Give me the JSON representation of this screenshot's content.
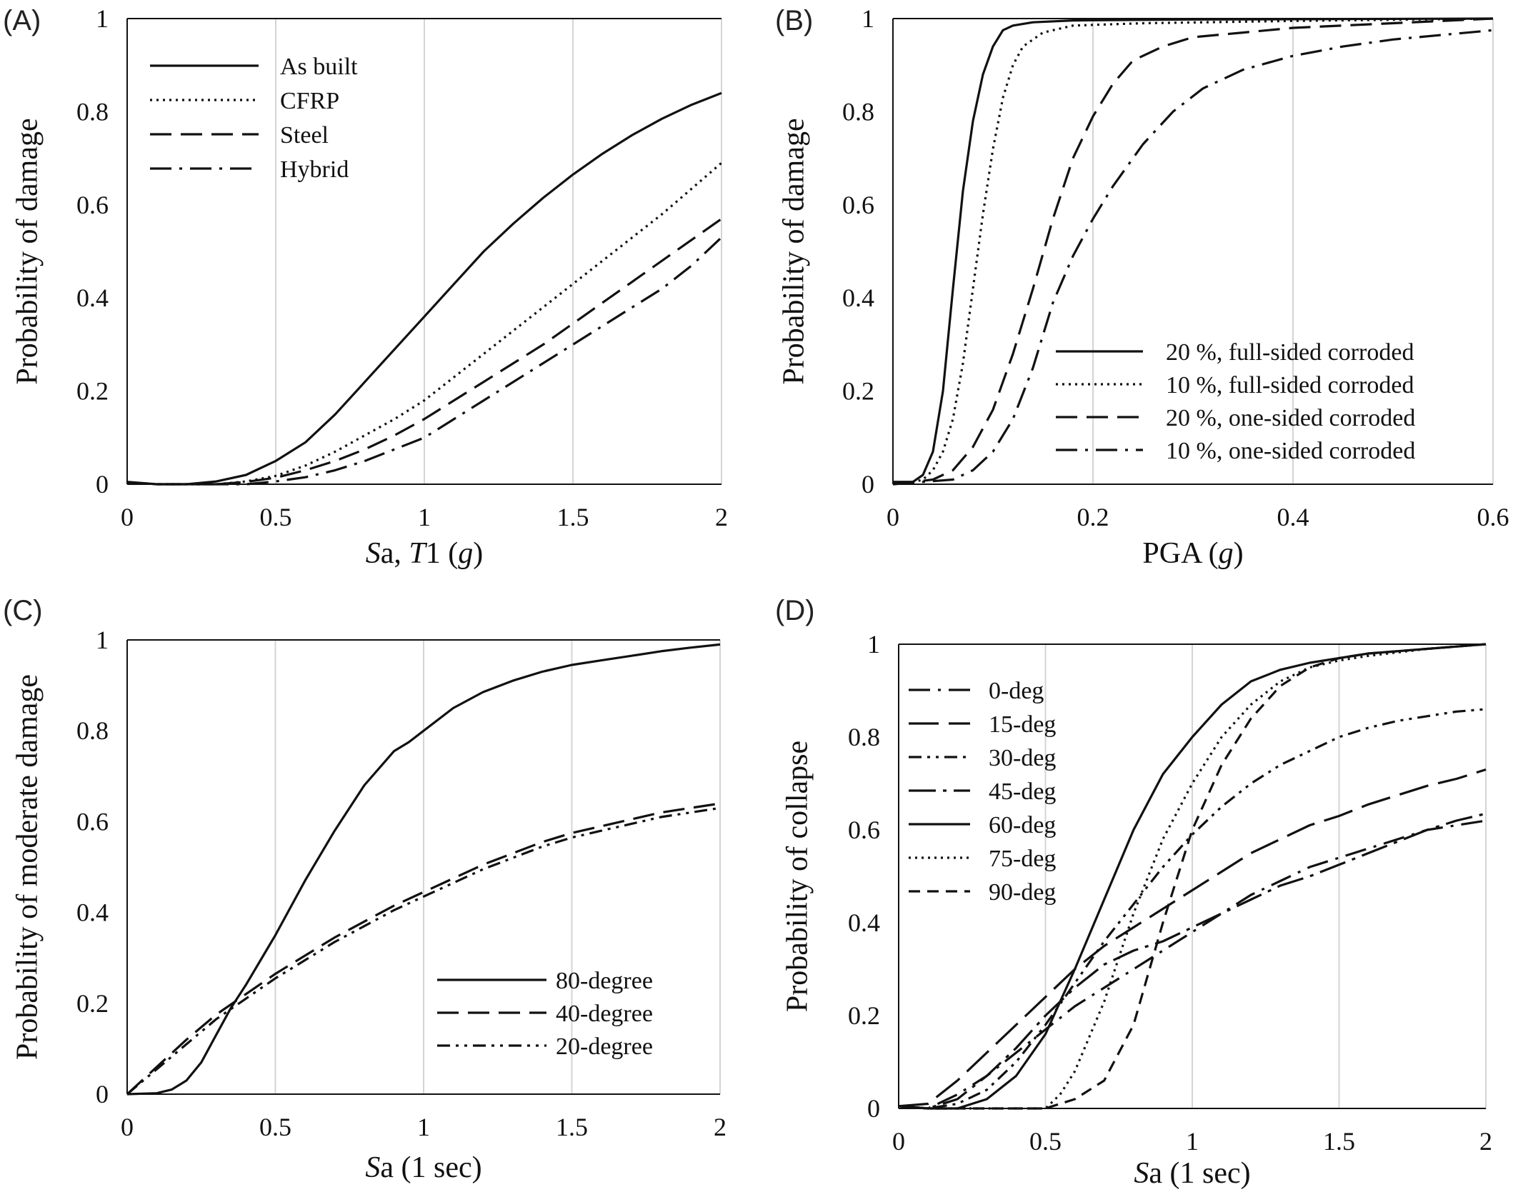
{
  "chart_data": [
    {
      "type": "line",
      "panel_label": "(A)",
      "xlabel_parts": [
        {
          "t": "S",
          "i": true
        },
        {
          "t": "a, ",
          "i": false
        },
        {
          "t": "T",
          "i": true
        },
        {
          "t": "1 (",
          "i": false
        },
        {
          "t": "g",
          "i": true
        },
        {
          "t": ")",
          "i": false
        }
      ],
      "ylabel": "Probability of damage",
      "xlim": [
        0,
        2
      ],
      "ylim": [
        0,
        1
      ],
      "xticks": [
        "0",
        "0.5",
        "1",
        "1.5",
        "2"
      ],
      "yticks": [
        "0",
        "0.2",
        "0.4",
        "0.6",
        "0.8",
        "1"
      ],
      "grid": true,
      "legend_position": "top-left",
      "series": [
        {
          "name": "As built",
          "dash": "solid",
          "x": [
            0,
            0.1,
            0.2,
            0.3,
            0.4,
            0.5,
            0.6,
            0.7,
            0.8,
            0.9,
            1.0,
            1.1,
            1.2,
            1.3,
            1.4,
            1.5,
            1.6,
            1.7,
            1.8,
            1.9,
            2.0
          ],
          "y": [
            0.005,
            0.0,
            0.0,
            0.006,
            0.02,
            0.05,
            0.09,
            0.15,
            0.22,
            0.29,
            0.36,
            0.43,
            0.5,
            0.56,
            0.615,
            0.665,
            0.71,
            0.75,
            0.785,
            0.815,
            0.84
          ]
        },
        {
          "name": "CFRP",
          "dash": "dotted",
          "x": [
            0,
            0.1,
            0.2,
            0.3,
            0.4,
            0.5,
            0.6,
            0.7,
            0.8,
            0.9,
            1.0,
            1.1,
            1.2,
            1.3,
            1.4,
            1.5,
            1.6,
            1.7,
            1.8,
            1.9,
            2.0
          ],
          "y": [
            0.004,
            0.0,
            0.0,
            0.0,
            0.006,
            0.018,
            0.04,
            0.07,
            0.105,
            0.14,
            0.18,
            0.23,
            0.28,
            0.33,
            0.38,
            0.43,
            0.48,
            0.53,
            0.58,
            0.635,
            0.69
          ]
        },
        {
          "name": "Steel",
          "dash": "dashed",
          "x": [
            0,
            0.1,
            0.2,
            0.3,
            0.4,
            0.5,
            0.6,
            0.7,
            0.8,
            0.9,
            1.0,
            1.1,
            1.2,
            1.3,
            1.4,
            1.5,
            1.6,
            1.7,
            1.8,
            1.9,
            2.0
          ],
          "y": [
            0.004,
            0.0,
            0.0,
            0.0,
            0.005,
            0.014,
            0.03,
            0.05,
            0.075,
            0.105,
            0.14,
            0.18,
            0.22,
            0.26,
            0.3,
            0.345,
            0.39,
            0.435,
            0.48,
            0.525,
            0.57
          ]
        },
        {
          "name": "Hybrid",
          "dash": "dashdot",
          "x": [
            0,
            0.1,
            0.2,
            0.3,
            0.4,
            0.5,
            0.6,
            0.7,
            0.8,
            0.9,
            1.0,
            1.1,
            1.2,
            1.3,
            1.4,
            1.5,
            1.6,
            1.7,
            1.8,
            1.9,
            2.0
          ],
          "y": [
            0.004,
            0.0,
            0.0,
            0.0,
            0.0,
            0.006,
            0.015,
            0.03,
            0.05,
            0.075,
            0.1,
            0.14,
            0.18,
            0.22,
            0.26,
            0.3,
            0.34,
            0.38,
            0.42,
            0.47,
            0.53
          ]
        }
      ]
    },
    {
      "type": "line",
      "panel_label": "(B)",
      "xlabel_parts": [
        {
          "t": "PGA (",
          "i": false
        },
        {
          "t": "g",
          "i": true
        },
        {
          "t": ")",
          "i": false
        }
      ],
      "ylabel": "Probability of damage",
      "xlim": [
        0,
        0.6
      ],
      "ylim": [
        0,
        1
      ],
      "xticks": [
        "0",
        "0.2",
        "0.4",
        "0.6"
      ],
      "yticks": [
        "0",
        "0.2",
        "0.4",
        "0.6",
        "0.8",
        "1"
      ],
      "grid": true,
      "legend_position": "bottom-right",
      "series": [
        {
          "name": "20 %, full-sided corroded",
          "dash": "solid",
          "x": [
            0,
            0.02,
            0.03,
            0.04,
            0.05,
            0.06,
            0.07,
            0.08,
            0.09,
            0.1,
            0.11,
            0.12,
            0.14,
            0.18,
            0.3,
            0.6
          ],
          "y": [
            0.005,
            0.005,
            0.02,
            0.07,
            0.2,
            0.42,
            0.63,
            0.78,
            0.88,
            0.94,
            0.975,
            0.985,
            0.992,
            0.996,
            0.998,
            1.0
          ]
        },
        {
          "name": "10 %, full-sided corroded",
          "dash": "dotted",
          "x": [
            0,
            0.02,
            0.03,
            0.04,
            0.05,
            0.06,
            0.07,
            0.08,
            0.09,
            0.1,
            0.11,
            0.12,
            0.13,
            0.15,
            0.18,
            0.25,
            0.4,
            0.6
          ],
          "y": [
            0.003,
            0.004,
            0.01,
            0.03,
            0.07,
            0.14,
            0.26,
            0.42,
            0.58,
            0.72,
            0.83,
            0.9,
            0.94,
            0.97,
            0.985,
            0.99,
            0.995,
            1.0
          ]
        },
        {
          "name": "20 %, one-sided corroded",
          "dash": "dashed",
          "x": [
            0,
            0.04,
            0.06,
            0.08,
            0.1,
            0.12,
            0.14,
            0.16,
            0.18,
            0.2,
            0.22,
            0.24,
            0.27,
            0.3,
            0.35,
            0.4,
            0.5,
            0.6
          ],
          "y": [
            0.0,
            0.01,
            0.03,
            0.08,
            0.16,
            0.28,
            0.42,
            0.57,
            0.7,
            0.79,
            0.86,
            0.91,
            0.94,
            0.96,
            0.97,
            0.98,
            0.99,
            1.0
          ]
        },
        {
          "name": "10 %, one-sided corroded",
          "dash": "dashdot",
          "x": [
            0,
            0.06,
            0.08,
            0.1,
            0.12,
            0.14,
            0.16,
            0.18,
            0.2,
            0.22,
            0.25,
            0.28,
            0.31,
            0.35,
            0.4,
            0.45,
            0.5,
            0.6
          ],
          "y": [
            0.0,
            0.01,
            0.03,
            0.07,
            0.14,
            0.25,
            0.39,
            0.49,
            0.57,
            0.64,
            0.73,
            0.8,
            0.85,
            0.89,
            0.92,
            0.94,
            0.955,
            0.975
          ]
        }
      ]
    },
    {
      "type": "line",
      "panel_label": "(C)",
      "xlabel_parts": [
        {
          "t": "S",
          "i": true
        },
        {
          "t": "a (1 sec)",
          "i": false
        }
      ],
      "ylabel": "Probability of moderate damage",
      "xlim": [
        0,
        2
      ],
      "ylim": [
        0,
        1
      ],
      "xticks": [
        "0",
        "0.5",
        "1",
        "1.5",
        "2"
      ],
      "yticks": [
        "0",
        "0.2",
        "0.4",
        "0.6",
        "0.8",
        "1"
      ],
      "grid": true,
      "legend_position": "bottom-right",
      "series": [
        {
          "name": "80-degree",
          "dash": "solid",
          "x": [
            0,
            0.1,
            0.15,
            0.2,
            0.25,
            0.3,
            0.35,
            0.4,
            0.5,
            0.6,
            0.7,
            0.8,
            0.9,
            0.95,
            1.0,
            1.1,
            1.2,
            1.3,
            1.4,
            1.5,
            1.6,
            1.7,
            1.8,
            1.9,
            2.0
          ],
          "y": [
            0.0,
            0.002,
            0.01,
            0.03,
            0.07,
            0.13,
            0.19,
            0.24,
            0.35,
            0.47,
            0.58,
            0.68,
            0.755,
            0.775,
            0.8,
            0.85,
            0.885,
            0.91,
            0.93,
            0.945,
            0.955,
            0.965,
            0.975,
            0.983,
            0.99
          ]
        },
        {
          "name": "40-degree",
          "dash": "dashed",
          "x": [
            0,
            0.1,
            0.2,
            0.3,
            0.4,
            0.5,
            0.6,
            0.7,
            0.8,
            0.9,
            1.0,
            1.1,
            1.2,
            1.3,
            1.4,
            1.5,
            1.6,
            1.7,
            1.8,
            1.9,
            2.0
          ],
          "y": [
            0.0,
            0.06,
            0.12,
            0.175,
            0.22,
            0.265,
            0.305,
            0.345,
            0.38,
            0.415,
            0.445,
            0.475,
            0.505,
            0.53,
            0.555,
            0.575,
            0.59,
            0.605,
            0.62,
            0.63,
            0.64
          ]
        },
        {
          "name": "20-degree",
          "dash": "dashdotdot",
          "x": [
            0,
            0.1,
            0.2,
            0.3,
            0.4,
            0.5,
            0.6,
            0.7,
            0.8,
            0.9,
            1.0,
            1.1,
            1.2,
            1.3,
            1.4,
            1.5,
            1.6,
            1.7,
            1.8,
            1.9,
            2.0
          ],
          "y": [
            0.0,
            0.055,
            0.11,
            0.165,
            0.21,
            0.255,
            0.295,
            0.335,
            0.37,
            0.405,
            0.435,
            0.465,
            0.495,
            0.52,
            0.545,
            0.565,
            0.58,
            0.595,
            0.61,
            0.62,
            0.63
          ]
        }
      ]
    },
    {
      "type": "line",
      "panel_label": "(D)",
      "xlabel_parts": [
        {
          "t": "S",
          "i": true
        },
        {
          "t": "a (1 sec)",
          "i": false
        }
      ],
      "ylabel": "Probability of collapse",
      "xlim": [
        0,
        2
      ],
      "ylim": [
        0,
        1
      ],
      "xticks": [
        "0",
        "0.5",
        "1",
        "1.5",
        "2"
      ],
      "yticks": [
        "0",
        "0.2",
        "0.4",
        "0.6",
        "0.8",
        "1"
      ],
      "grid": true,
      "legend_position": "top-left",
      "series": [
        {
          "name": "0-deg",
          "dash": "dashdot",
          "x": [
            0,
            0.1,
            0.2,
            0.3,
            0.4,
            0.5,
            0.6,
            0.7,
            0.8,
            0.9,
            1.0,
            1.1,
            1.2,
            1.3,
            1.4,
            1.5,
            1.6,
            1.7,
            1.8,
            1.9,
            2.0
          ],
          "y": [
            0.005,
            0.0,
            0.03,
            0.07,
            0.12,
            0.17,
            0.22,
            0.26,
            0.3,
            0.34,
            0.38,
            0.42,
            0.46,
            0.49,
            0.52,
            0.54,
            0.56,
            0.58,
            0.6,
            0.61,
            0.62
          ]
        },
        {
          "name": "15-deg",
          "dash": "longdash",
          "x": [
            0,
            0.1,
            0.2,
            0.3,
            0.4,
            0.5,
            0.6,
            0.7,
            0.8,
            0.9,
            1.0,
            1.1,
            1.2,
            1.3,
            1.4,
            1.5,
            1.6,
            1.7,
            1.8,
            1.9,
            2.0
          ],
          "y": [
            0.005,
            0.01,
            0.06,
            0.12,
            0.18,
            0.24,
            0.3,
            0.35,
            0.39,
            0.43,
            0.47,
            0.51,
            0.55,
            0.58,
            0.61,
            0.63,
            0.655,
            0.675,
            0.695,
            0.71,
            0.73
          ]
        },
        {
          "name": "30-deg",
          "dash": "dashdotdot",
          "x": [
            0,
            0.1,
            0.2,
            0.3,
            0.4,
            0.5,
            0.6,
            0.7,
            0.8,
            0.9,
            1.0,
            1.1,
            1.2,
            1.3,
            1.4,
            1.5,
            1.6,
            1.7,
            1.8,
            1.9,
            2.0
          ],
          "y": [
            0.005,
            0.0,
            0.01,
            0.04,
            0.1,
            0.18,
            0.27,
            0.36,
            0.44,
            0.52,
            0.59,
            0.65,
            0.7,
            0.74,
            0.77,
            0.8,
            0.82,
            0.835,
            0.845,
            0.855,
            0.86
          ]
        },
        {
          "name": "45-deg",
          "dash": "longdashdot",
          "x": [
            0,
            0.1,
            0.2,
            0.3,
            0.4,
            0.5,
            0.6,
            0.7,
            0.8,
            0.9,
            1.0,
            1.1,
            1.2,
            1.3,
            1.4,
            1.5,
            1.6,
            1.7,
            1.8,
            1.9,
            2.0
          ],
          "y": [
            0.005,
            0.0,
            0.02,
            0.07,
            0.13,
            0.2,
            0.26,
            0.31,
            0.34,
            0.36,
            0.39,
            0.42,
            0.45,
            0.48,
            0.5,
            0.525,
            0.55,
            0.575,
            0.6,
            0.62,
            0.635
          ]
        },
        {
          "name": "60-deg",
          "dash": "solid",
          "x": [
            0,
            0.1,
            0.2,
            0.3,
            0.4,
            0.5,
            0.6,
            0.7,
            0.8,
            0.9,
            1.0,
            1.1,
            1.2,
            1.3,
            1.4,
            1.5,
            1.6,
            1.8,
            2.0
          ],
          "y": [
            0.005,
            0.0,
            0.0,
            0.02,
            0.07,
            0.16,
            0.3,
            0.45,
            0.6,
            0.72,
            0.8,
            0.87,
            0.92,
            0.945,
            0.96,
            0.97,
            0.98,
            0.99,
            1.0
          ]
        },
        {
          "name": "75-deg",
          "dash": "dotted",
          "x": [
            0,
            0.1,
            0.2,
            0.3,
            0.4,
            0.5,
            0.55,
            0.6,
            0.7,
            0.8,
            0.9,
            1.0,
            1.1,
            1.2,
            1.3,
            1.4,
            1.5,
            1.6,
            1.8,
            2.0
          ],
          "y": [
            0.005,
            0.0,
            0.0,
            0.0,
            0.0,
            0.0,
            0.03,
            0.08,
            0.23,
            0.42,
            0.58,
            0.7,
            0.8,
            0.87,
            0.92,
            0.95,
            0.965,
            0.975,
            0.99,
            1.0
          ]
        },
        {
          "name": "90-deg",
          "dash": "shortdash",
          "x": [
            0,
            0.1,
            0.2,
            0.3,
            0.4,
            0.5,
            0.6,
            0.7,
            0.8,
            0.9,
            1.0,
            1.1,
            1.2,
            1.3,
            1.4,
            1.5,
            1.6,
            1.8,
            2.0
          ],
          "y": [
            0.005,
            0.0,
            0.0,
            0.0,
            0.0,
            0.0,
            0.02,
            0.06,
            0.18,
            0.4,
            0.6,
            0.74,
            0.84,
            0.91,
            0.95,
            0.97,
            0.98,
            0.99,
            1.0
          ]
        }
      ]
    }
  ]
}
